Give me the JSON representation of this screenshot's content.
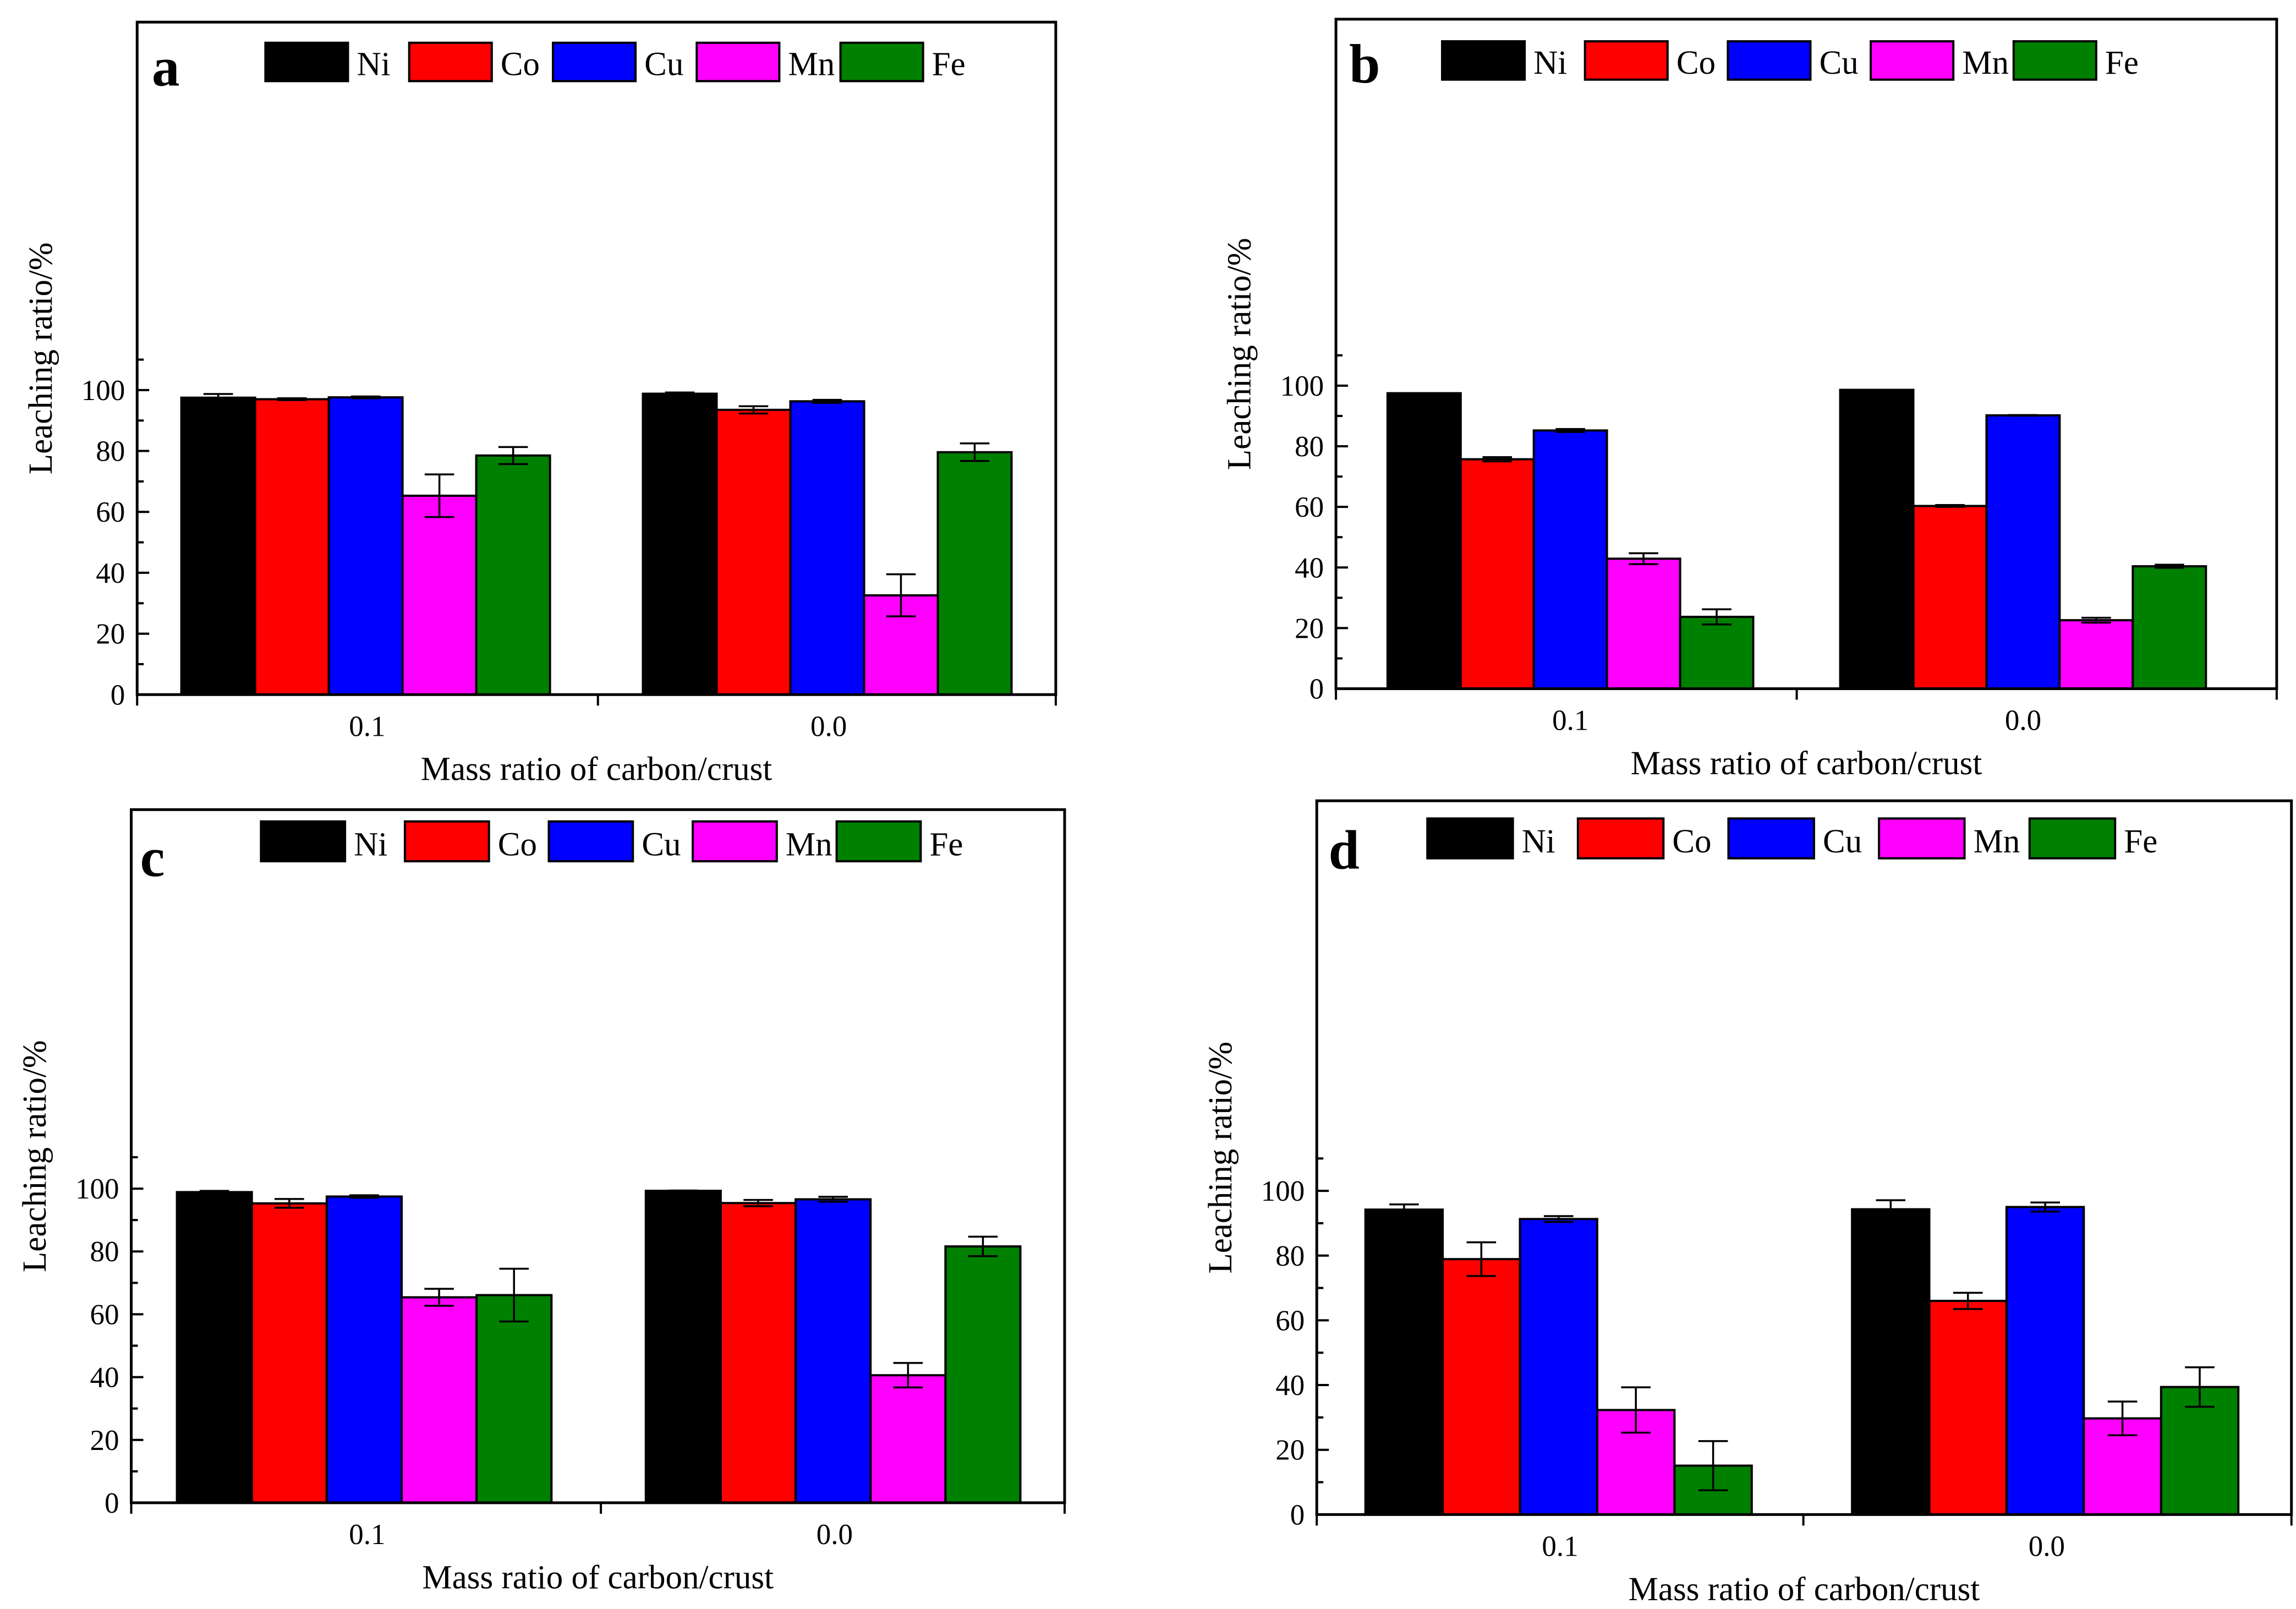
{
  "chart_data": [
    {
      "type": "bar",
      "panel_label": "a",
      "categories": [
        "0.1",
        "0.0"
      ],
      "xlabel": "Mass ratio of carbon/crust",
      "ylabel": "Leaching ratio/%",
      "ylim": [
        0,
        110
      ],
      "yticks": [
        0,
        20,
        40,
        60,
        80,
        100
      ],
      "legend": [
        "Ni",
        "Co",
        "Cu",
        "Mn",
        "Fe"
      ],
      "legend_position": "top",
      "series": [
        {
          "name": "Ni",
          "color": "#000000",
          "values": [
            97.5,
            98.8
          ],
          "errors": [
            1.2,
            0.4
          ]
        },
        {
          "name": "Co",
          "color": "#ff0000",
          "values": [
            97.0,
            93.5
          ],
          "errors": [
            0.3,
            1.2
          ]
        },
        {
          "name": "Cu",
          "color": "#0000ff",
          "values": [
            97.6,
            96.3
          ],
          "errors": [
            0.3,
            0.5
          ]
        },
        {
          "name": "Mn",
          "color": "#ff00ff",
          "values": [
            65.3,
            32.6
          ],
          "errors": [
            7.0,
            6.9
          ]
        },
        {
          "name": "Fe",
          "color": "#008000",
          "values": [
            78.5,
            79.6
          ],
          "errors": [
            2.8,
            2.9
          ]
        }
      ]
    },
    {
      "type": "bar",
      "panel_label": "b",
      "categories": [
        "0.1",
        "0.0"
      ],
      "xlabel": "Mass ratio of carbon/crust",
      "ylabel": "Leaching ratio/%",
      "ylim": [
        0,
        110
      ],
      "yticks": [
        0,
        20,
        40,
        60,
        80,
        100
      ],
      "legend": [
        "Ni",
        "Co",
        "Cu",
        "Mn",
        "Fe"
      ],
      "legend_position": "top",
      "series": [
        {
          "name": "Ni",
          "color": "#000000",
          "values": [
            97.5,
            98.6
          ],
          "errors": [
            0,
            0
          ]
        },
        {
          "name": "Co",
          "color": "#ff0000",
          "values": [
            75.7,
            60.3
          ],
          "errors": [
            0.7,
            0.3
          ]
        },
        {
          "name": "Cu",
          "color": "#0000ff",
          "values": [
            85.2,
            90.2
          ],
          "errors": [
            0.5,
            0.1
          ]
        },
        {
          "name": "Mn",
          "color": "#ff00ff",
          "values": [
            42.9,
            22.6
          ],
          "errors": [
            1.8,
            0.8
          ]
        },
        {
          "name": "Fe",
          "color": "#008000",
          "values": [
            23.7,
            40.4
          ],
          "errors": [
            2.5,
            0.5
          ]
        }
      ]
    },
    {
      "type": "bar",
      "panel_label": "c",
      "categories": [
        "0.1",
        "0.0"
      ],
      "xlabel": "Mass ratio of carbon/crust",
      "ylabel": "Leaching ratio/%",
      "ylim": [
        0,
        110
      ],
      "yticks": [
        0,
        20,
        40,
        60,
        80,
        100
      ],
      "legend": [
        "Ni",
        "Co",
        "Cu",
        "Mn",
        "Fe"
      ],
      "legend_position": "top",
      "series": [
        {
          "name": "Ni",
          "color": "#000000",
          "values": [
            98.9,
            99.3
          ],
          "errors": [
            0.4,
            0.1
          ]
        },
        {
          "name": "Co",
          "color": "#ff0000",
          "values": [
            95.3,
            95.4
          ],
          "errors": [
            1.4,
            1.0
          ]
        },
        {
          "name": "Cu",
          "color": "#0000ff",
          "values": [
            97.5,
            96.6
          ],
          "errors": [
            0.4,
            0.8
          ]
        },
        {
          "name": "Mn",
          "color": "#ff00ff",
          "values": [
            65.4,
            40.6
          ],
          "errors": [
            2.7,
            3.9
          ]
        },
        {
          "name": "Fe",
          "color": "#008000",
          "values": [
            66.1,
            81.6
          ],
          "errors": [
            8.4,
            3.1
          ]
        }
      ]
    },
    {
      "type": "bar",
      "panel_label": "d",
      "categories": [
        "0.1",
        "0.0"
      ],
      "xlabel": "Mass ratio of carbon/crust",
      "ylabel": "Leaching ratio/%",
      "ylim": [
        0,
        110
      ],
      "yticks": [
        0,
        20,
        40,
        60,
        80,
        100
      ],
      "legend": [
        "Ni",
        "Co",
        "Cu",
        "Mn",
        "Fe"
      ],
      "legend_position": "top",
      "series": [
        {
          "name": "Ni",
          "color": "#000000",
          "values": [
            94.2,
            94.3
          ],
          "errors": [
            1.6,
            2.8
          ]
        },
        {
          "name": "Co",
          "color": "#ff0000",
          "values": [
            78.9,
            66.0
          ],
          "errors": [
            5.2,
            2.5
          ]
        },
        {
          "name": "Cu",
          "color": "#0000ff",
          "values": [
            91.3,
            95.0
          ],
          "errors": [
            0.9,
            1.4
          ]
        },
        {
          "name": "Mn",
          "color": "#ff00ff",
          "values": [
            32.3,
            29.7
          ],
          "errors": [
            7.0,
            5.2
          ]
        },
        {
          "name": "Fe",
          "color": "#008000",
          "values": [
            15.1,
            39.4
          ],
          "errors": [
            7.6,
            6.1
          ]
        }
      ]
    }
  ]
}
